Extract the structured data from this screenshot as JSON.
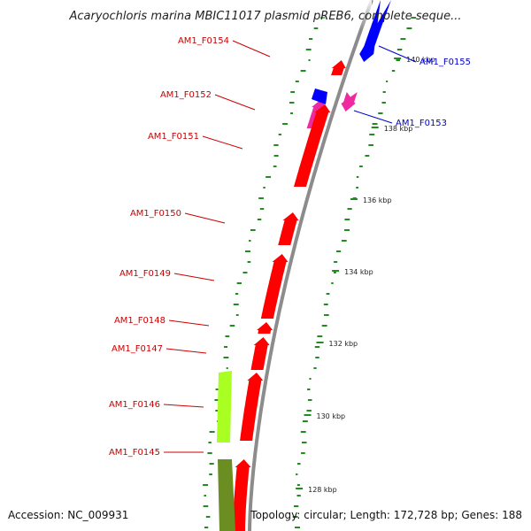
{
  "title": "Acaryochloris marina MBIC11017 plasmid pREB6, complete seque...",
  "accession": "Accession: NC_009931",
  "summary": "Topology: circular; Length: 172,728 bp; Genes: 188",
  "colors": {
    "forward": "#ff0000",
    "reverse": "#0000ff",
    "pink": "#ee2aa0",
    "lime": "#aaff22",
    "olive": "#6b8e23",
    "backbone": "#8c8c8c",
    "gc_track": "#228b22",
    "label_forward": "#cc0000",
    "label_reverse": "#0000cc"
  },
  "scale_ticks": [
    "140 kbp",
    "138 kbp",
    "136 kbp",
    "134 kbp",
    "132 kbp",
    "130 kbp",
    "128 kbp"
  ],
  "genes": [
    {
      "name": "AM1_F0155",
      "strand": "reverse"
    },
    {
      "name": "AM1_F0154",
      "strand": "forward"
    },
    {
      "name": "AM1_F0153",
      "strand": "reverse"
    },
    {
      "name": "AM1_F0152",
      "strand": "forward"
    },
    {
      "name": "AM1_F0151",
      "strand": "forward"
    },
    {
      "name": "AM1_F0150",
      "strand": "forward"
    },
    {
      "name": "AM1_F0149",
      "strand": "forward"
    },
    {
      "name": "AM1_F0148",
      "strand": "forward"
    },
    {
      "name": "AM1_F0147",
      "strand": "forward"
    },
    {
      "name": "AM1_F0146",
      "strand": "forward"
    },
    {
      "name": "AM1_F0145",
      "strand": "forward"
    }
  ]
}
